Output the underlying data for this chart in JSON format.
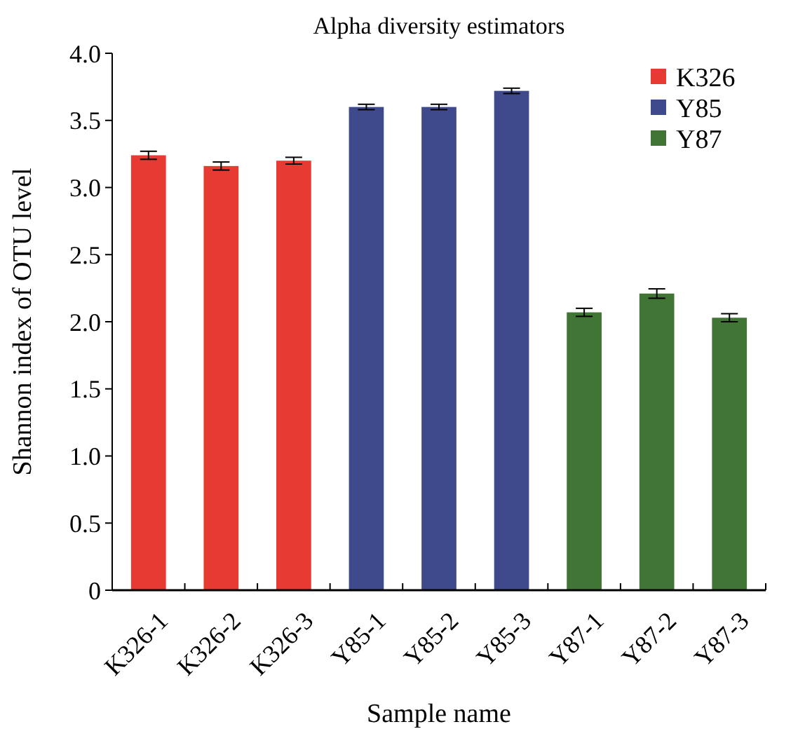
{
  "chart_data": {
    "type": "bar",
    "title": "Alpha diversity estimators",
    "xlabel": "Sample name",
    "ylabel": "Shannon index of OTU level",
    "categories": [
      "K326-1",
      "K326-2",
      "K326-3",
      "Y85-1",
      "Y85-2",
      "Y85-3",
      "Y87-1",
      "Y87-2",
      "Y87-3"
    ],
    "series": [
      {
        "name": "K326",
        "color": "#e63a32",
        "values": [
          3.24,
          3.16,
          3.2,
          null,
          null,
          null,
          null,
          null,
          null
        ],
        "errors": [
          0.03,
          0.03,
          0.025,
          null,
          null,
          null,
          null,
          null,
          null
        ]
      },
      {
        "name": "Y85",
        "color": "#3f4a8c",
        "values": [
          null,
          null,
          null,
          3.6,
          3.6,
          3.72,
          null,
          null,
          null
        ],
        "errors": [
          null,
          null,
          null,
          0.02,
          0.02,
          0.02,
          null,
          null,
          null
        ]
      },
      {
        "name": "Y87",
        "color": "#417535",
        "values": [
          null,
          null,
          null,
          null,
          null,
          null,
          2.07,
          2.21,
          2.03
        ],
        "errors": [
          null,
          null,
          null,
          null,
          null,
          null,
          0.03,
          0.035,
          0.03
        ]
      }
    ],
    "ylim": [
      0,
      4
    ],
    "yticks": [
      {
        "value": 0,
        "label": "0"
      },
      {
        "value": 0.5,
        "label": "0.5"
      },
      {
        "value": 1,
        "label": "1.0"
      },
      {
        "value": 1.5,
        "label": "1.5"
      },
      {
        "value": 2,
        "label": "2.0"
      },
      {
        "value": 2.5,
        "label": "2.5"
      },
      {
        "value": 3,
        "label": "3.0"
      },
      {
        "value": 3.5,
        "label": "3.5"
      },
      {
        "value": 4,
        "label": "4.0"
      }
    ],
    "grid": false,
    "legend": "top right"
  }
}
